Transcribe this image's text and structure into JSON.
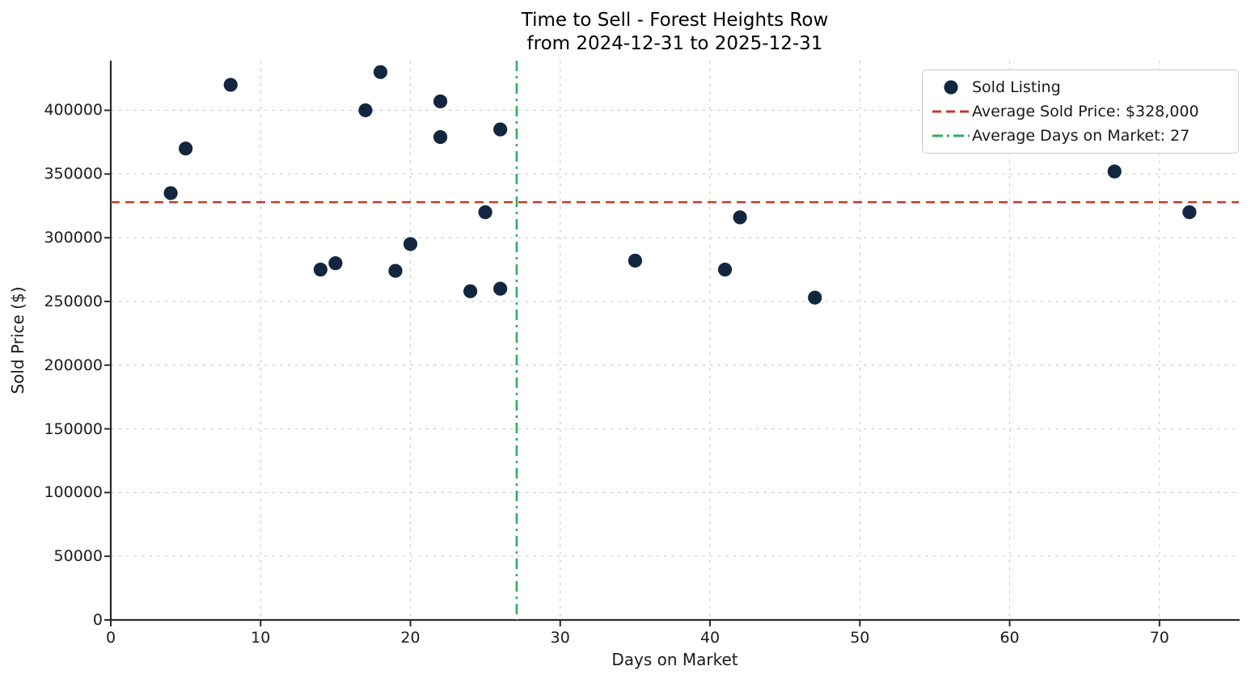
{
  "chart_data": {
    "type": "scatter",
    "title": "Time to Sell - Forest Heights Row",
    "subtitle": "from 2024-12-31 to 2025-12-31",
    "xlabel": "Days on Market",
    "ylabel": "Sold Price ($)",
    "xlim": [
      0,
      75.3
    ],
    "ylim": [
      0,
      439000
    ],
    "x_ticks": [
      0,
      10,
      20,
      30,
      40,
      50,
      60,
      70
    ],
    "y_ticks": [
      0,
      50000,
      100000,
      150000,
      200000,
      250000,
      300000,
      350000,
      400000
    ],
    "grid": true,
    "grid_style": "dashed",
    "legend_position": "upper-right",
    "series": [
      {
        "name": "Sold Listing",
        "kind": "scatter",
        "color": "#12263f",
        "points": [
          [
            4,
            335000
          ],
          [
            5,
            370000
          ],
          [
            8,
            420000
          ],
          [
            14,
            275000
          ],
          [
            15,
            280000
          ],
          [
            17,
            400000
          ],
          [
            18,
            430000
          ],
          [
            19,
            274000
          ],
          [
            20,
            295000
          ],
          [
            22,
            407000
          ],
          [
            22,
            379000
          ],
          [
            24,
            258000
          ],
          [
            25,
            320000
          ],
          [
            26,
            385000
          ],
          [
            26,
            260000
          ],
          [
            35,
            282000
          ],
          [
            41,
            275000
          ],
          [
            42,
            316000
          ],
          [
            47,
            253000
          ],
          [
            67,
            352000
          ],
          [
            72,
            320000
          ]
        ]
      },
      {
        "name": "Average Sold Price: $328,000",
        "kind": "hline",
        "value": 328000,
        "style": "dashed",
        "color": "#c13a2b"
      },
      {
        "name": "Average Days on Market: 27",
        "kind": "vline",
        "value": 27,
        "style": "dashdot",
        "color": "#2fae60"
      }
    ],
    "colors": {
      "dot": "#12263f",
      "avg_price_line": "#c13a2b",
      "avg_days_line": "#2fae60",
      "gridline": "#cdcdcd",
      "spine": "#2b2b2b",
      "text": "#1a1a1a"
    }
  }
}
